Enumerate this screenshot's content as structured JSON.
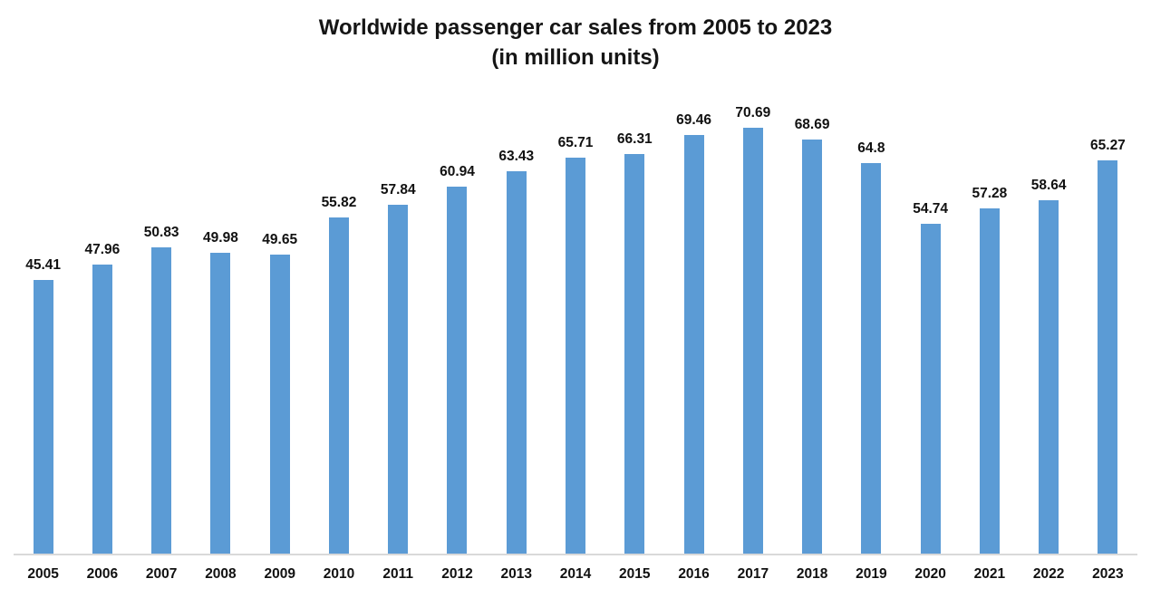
{
  "header": {
    "title_line1": "Worldwide passenger car sales from 2005 to 2023",
    "title_line2": "(in million units)"
  },
  "chart_data": {
    "type": "bar",
    "title": "Worldwide passenger car sales from 2005 to 2023 (in million units)",
    "categories": [
      "2005",
      "2006",
      "2007",
      "2008",
      "2009",
      "2010",
      "2011",
      "2012",
      "2013",
      "2014",
      "2015",
      "2016",
      "2017",
      "2018",
      "2019",
      "2020",
      "2021",
      "2022",
      "2023"
    ],
    "values": [
      45.41,
      47.96,
      50.83,
      49.98,
      49.65,
      55.82,
      57.84,
      60.94,
      63.43,
      65.71,
      66.31,
      69.46,
      70.69,
      68.69,
      64.8,
      54.74,
      57.28,
      58.64,
      65.27
    ],
    "xlabel": "",
    "ylabel": "",
    "ylim": [
      0,
      70.69
    ],
    "data_labels": true,
    "gridlines": false,
    "legend_position": "none",
    "bar_color": "#5B9BD5",
    "axis_line_color": "#D9D9D9",
    "label_color": "#111111",
    "title_color": "#151515"
  }
}
